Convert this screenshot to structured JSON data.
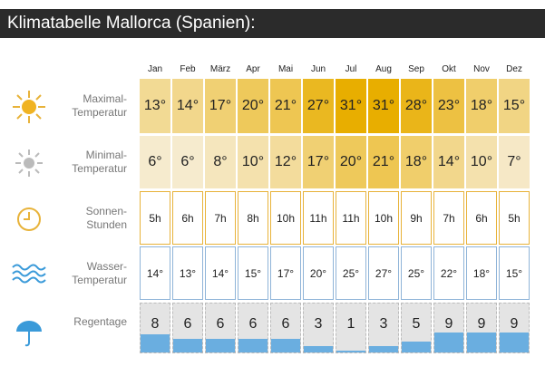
{
  "title": "Klimatabelle Mallorca (Spanien):",
  "months": [
    "Jan",
    "Feb",
    "März",
    "Apr",
    "Mai",
    "Jun",
    "Jul",
    "Aug",
    "Sep",
    "Okt",
    "Nov",
    "Dez"
  ],
  "rows": [
    {
      "label": [
        "Maximal-",
        "Temperatur"
      ],
      "values": [
        "13°",
        "14°",
        "17°",
        "20°",
        "21°",
        "27°",
        "31°",
        "31°",
        "28°",
        "23°",
        "18°",
        "15°"
      ]
    },
    {
      "label": [
        "Minimal-",
        "Temperatur"
      ],
      "values": [
        "6°",
        "6°",
        "8°",
        "10°",
        "12°",
        "17°",
        "20°",
        "21°",
        "18°",
        "14°",
        "10°",
        "7°"
      ]
    },
    {
      "label": [
        "Sonnen-",
        "Stunden"
      ],
      "values": [
        "5h",
        "6h",
        "7h",
        "8h",
        "10h",
        "11h",
        "11h",
        "10h",
        "9h",
        "7h",
        "6h",
        "5h"
      ]
    },
    {
      "label": [
        "Wasser-",
        "Temperatur"
      ],
      "values": [
        "14°",
        "13°",
        "14°",
        "15°",
        "17°",
        "20°",
        "25°",
        "27°",
        "25°",
        "22°",
        "18°",
        "15°"
      ]
    },
    {
      "label": [
        "Regentage"
      ],
      "values": [
        8,
        6,
        6,
        6,
        6,
        3,
        1,
        3,
        5,
        9,
        9,
        9
      ]
    }
  ]
}
